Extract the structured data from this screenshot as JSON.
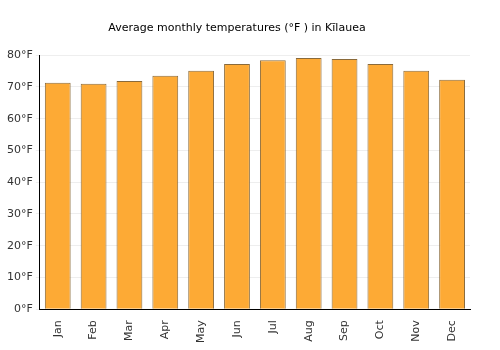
{
  "chart_data": {
    "type": "bar",
    "title": "Average monthly temperatures (°F ) in Kīlauea",
    "categories": [
      "Jan",
      "Feb",
      "Mar",
      "Apr",
      "May",
      "Jun",
      "Jul",
      "Aug",
      "Sep",
      "Oct",
      "Nov",
      "Dec"
    ],
    "values": [
      71.3,
      71.0,
      71.9,
      73.5,
      75.1,
      77.2,
      78.4,
      79.1,
      78.8,
      77.2,
      75.1,
      72.3
    ],
    "color": "#fdaa35",
    "ylim": [
      0,
      80
    ],
    "yticks": [
      {
        "value": 0,
        "label": "0°F"
      },
      {
        "value": 10,
        "label": "10°F"
      },
      {
        "value": 20,
        "label": "20°F"
      },
      {
        "value": 30,
        "label": "30°F"
      },
      {
        "value": 40,
        "label": "40°F"
      },
      {
        "value": 50,
        "label": "50°F"
      },
      {
        "value": 60,
        "label": "60°F"
      },
      {
        "value": 70,
        "label": "70°F"
      },
      {
        "value": 80,
        "label": "80°F"
      }
    ],
    "grid": true
  }
}
